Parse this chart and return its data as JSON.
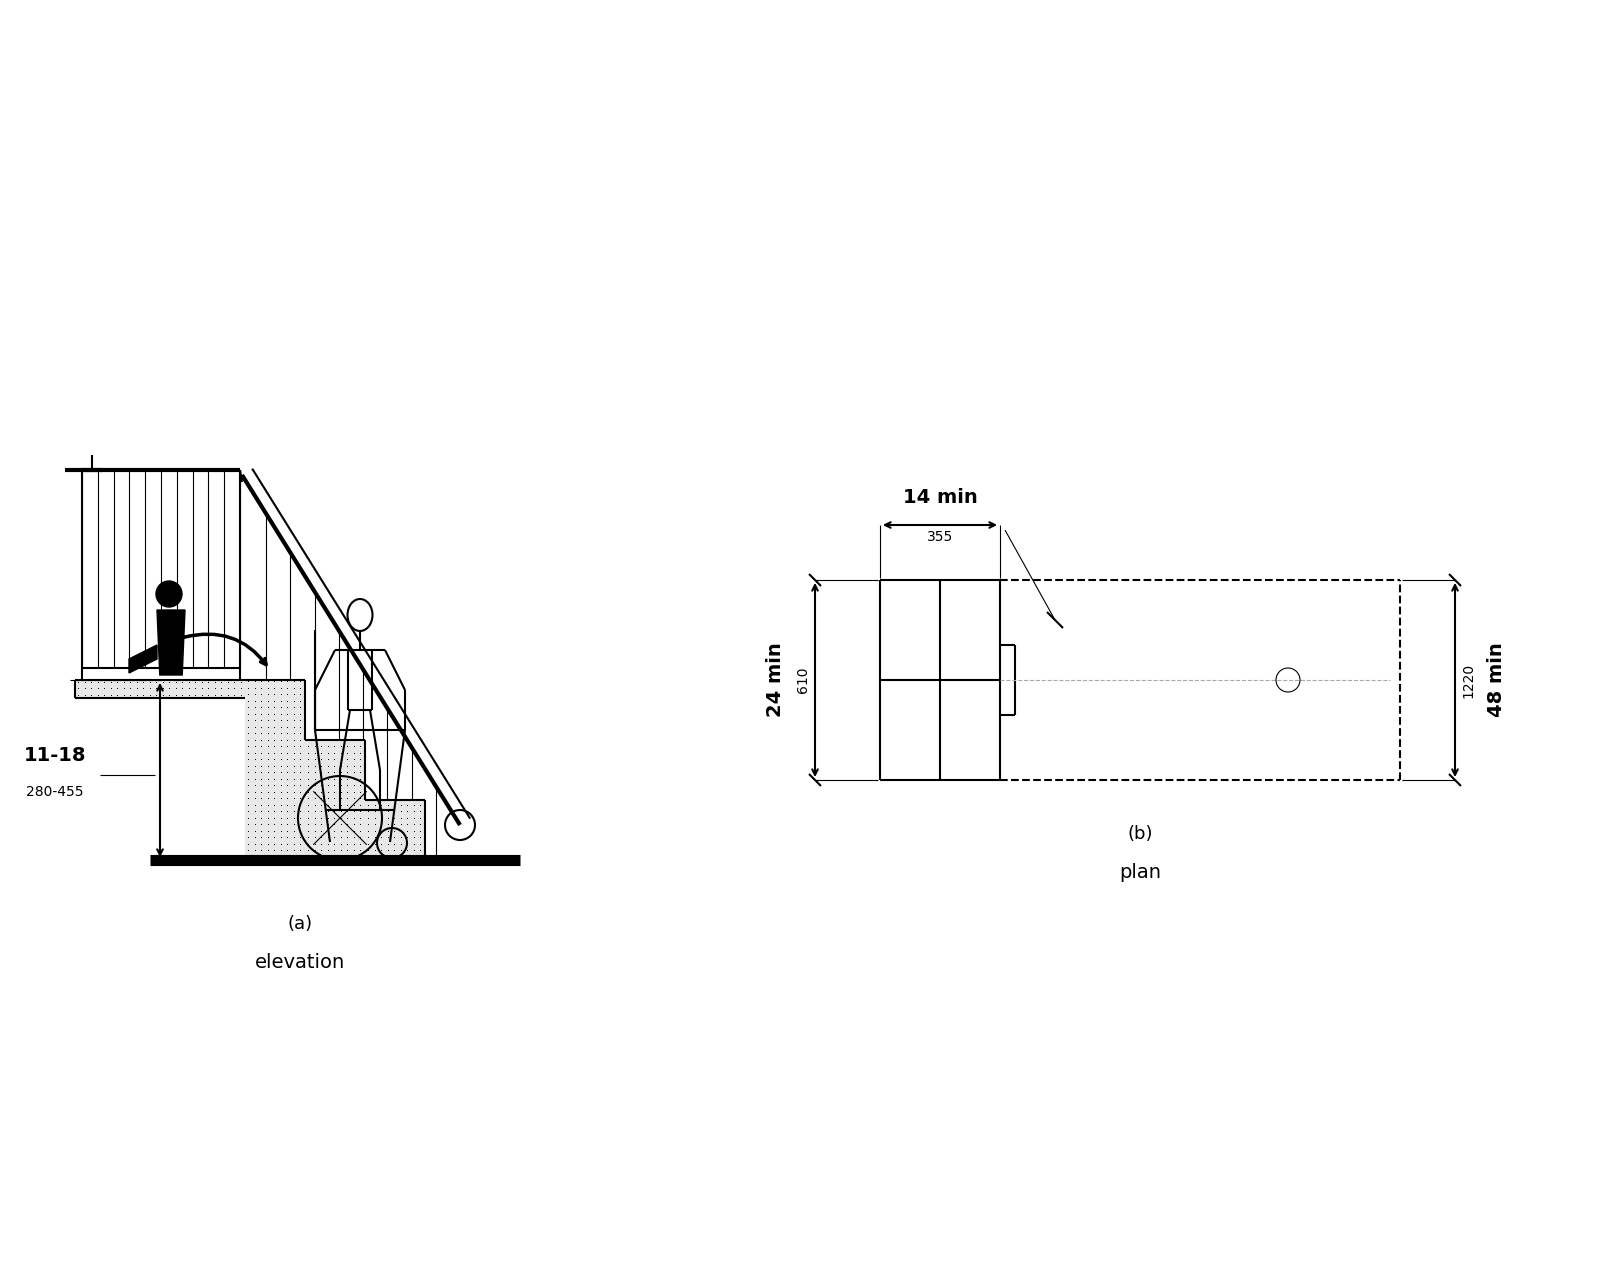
{
  "bg_color": "#ffffff",
  "line_color": "#000000",
  "label_a_1": "(a)",
  "label_a_2": "elevation",
  "label_b_1": "(b)",
  "label_b_2": "plan",
  "dim_11_18": "11-18",
  "dim_280_455": "280-455",
  "dim_14_min": "14 min",
  "dim_355": "355",
  "dim_24_min": "24 min",
  "dim_610": "610",
  "dim_48_min": "48 min",
  "dim_1220": "1220"
}
